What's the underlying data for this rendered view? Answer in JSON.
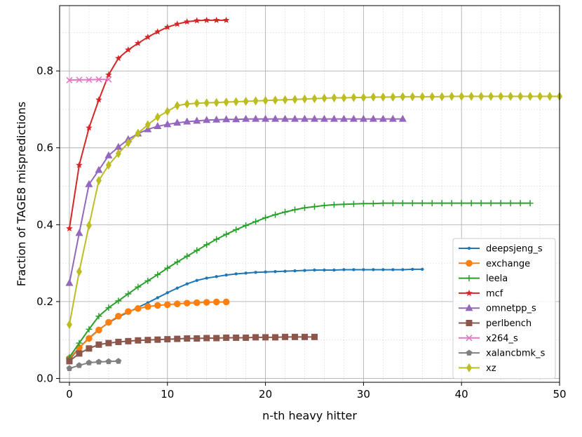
{
  "chart_data": {
    "type": "line",
    "xlabel": "n-th heavy hitter",
    "ylabel": "Fraction of TAGE8 mispredictions",
    "xlim": [
      -1,
      50
    ],
    "ylim": [
      -0.01,
      0.97
    ],
    "xticks": [
      0,
      10,
      20,
      30,
      40,
      50
    ],
    "yticks": [
      0.0,
      0.2,
      0.4,
      0.6,
      0.8
    ],
    "ytick_labels": [
      "0.0",
      "0.2",
      "0.4",
      "0.6",
      "0.8"
    ],
    "grid": "major and minor",
    "legend_position": "lower-right",
    "series": [
      {
        "name": "deepsjeng_s",
        "color": "#1f77b4",
        "marker": "dot",
        "values": [
          0.048,
          0.08,
          0.105,
          0.127,
          0.145,
          0.16,
          0.172,
          0.185,
          0.197,
          0.21,
          0.223,
          0.235,
          0.246,
          0.255,
          0.261,
          0.265,
          0.269,
          0.272,
          0.274,
          0.276,
          0.277,
          0.278,
          0.279,
          0.28,
          0.281,
          0.282,
          0.282,
          0.282,
          0.283,
          0.283,
          0.283,
          0.283,
          0.283,
          0.283,
          0.283,
          0.284,
          0.284
        ]
      },
      {
        "name": "exchange",
        "color": "#ff7f0e",
        "marker": "circle",
        "values": [
          0.052,
          0.08,
          0.104,
          0.126,
          0.146,
          0.162,
          0.174,
          0.182,
          0.187,
          0.19,
          0.192,
          0.194,
          0.196,
          0.197,
          0.198,
          0.199,
          0.199
        ]
      },
      {
        "name": "leela",
        "color": "#2ca02c",
        "marker": "plus",
        "values": [
          0.055,
          0.092,
          0.128,
          0.162,
          0.184,
          0.202,
          0.22,
          0.238,
          0.254,
          0.27,
          0.287,
          0.303,
          0.318,
          0.333,
          0.348,
          0.362,
          0.375,
          0.387,
          0.398,
          0.408,
          0.418,
          0.426,
          0.433,
          0.439,
          0.444,
          0.447,
          0.45,
          0.452,
          0.453,
          0.454,
          0.455,
          0.455,
          0.456,
          0.456,
          0.456,
          0.456,
          0.456,
          0.456,
          0.456,
          0.456,
          0.456,
          0.456,
          0.456,
          0.456,
          0.456,
          0.456,
          0.456,
          0.456
        ]
      },
      {
        "name": "mcf",
        "color": "#d62728",
        "marker": "star",
        "values": [
          0.39,
          0.555,
          0.652,
          0.725,
          0.79,
          0.833,
          0.855,
          0.872,
          0.888,
          0.902,
          0.914,
          0.922,
          0.928,
          0.931,
          0.932,
          0.932,
          0.932
        ]
      },
      {
        "name": "omnetpp_s",
        "color": "#9467bd",
        "marker": "triangle",
        "values": [
          0.248,
          0.378,
          0.505,
          0.542,
          0.58,
          0.602,
          0.622,
          0.637,
          0.648,
          0.656,
          0.661,
          0.665,
          0.668,
          0.67,
          0.672,
          0.673,
          0.674,
          0.674,
          0.675,
          0.675,
          0.675,
          0.675,
          0.675,
          0.675,
          0.675,
          0.675,
          0.675,
          0.675,
          0.675,
          0.675,
          0.675,
          0.675,
          0.675,
          0.675,
          0.675
        ]
      },
      {
        "name": "perlbench",
        "color": "#8c564b",
        "marker": "square",
        "values": [
          0.045,
          0.065,
          0.078,
          0.088,
          0.092,
          0.095,
          0.097,
          0.099,
          0.1,
          0.101,
          0.102,
          0.103,
          0.104,
          0.104,
          0.105,
          0.105,
          0.106,
          0.106,
          0.106,
          0.107,
          0.107,
          0.107,
          0.108,
          0.108,
          0.108,
          0.108
        ]
      },
      {
        "name": "x264_s",
        "color": "#e377c2",
        "marker": "x",
        "values": [
          0.776,
          0.777,
          0.777,
          0.778,
          0.778
        ]
      },
      {
        "name": "xalancbmk_s",
        "color": "#7f7f7f",
        "marker": "pentagon",
        "values": [
          0.026,
          0.034,
          0.041,
          0.043,
          0.044,
          0.045
        ]
      },
      {
        "name": "xz",
        "color": "#bcbd22",
        "marker": "diamond",
        "values": [
          0.14,
          0.278,
          0.398,
          0.515,
          0.555,
          0.585,
          0.613,
          0.638,
          0.66,
          0.68,
          0.695,
          0.71,
          0.714,
          0.716,
          0.717,
          0.718,
          0.719,
          0.72,
          0.721,
          0.722,
          0.723,
          0.724,
          0.725,
          0.726,
          0.727,
          0.728,
          0.729,
          0.73,
          0.73,
          0.731,
          0.731,
          0.732,
          0.732,
          0.732,
          0.733,
          0.733,
          0.733,
          0.733,
          0.733,
          0.734,
          0.734,
          0.734,
          0.734,
          0.734,
          0.734,
          0.734,
          0.734,
          0.734,
          0.734,
          0.734,
          0.734
        ]
      }
    ]
  }
}
